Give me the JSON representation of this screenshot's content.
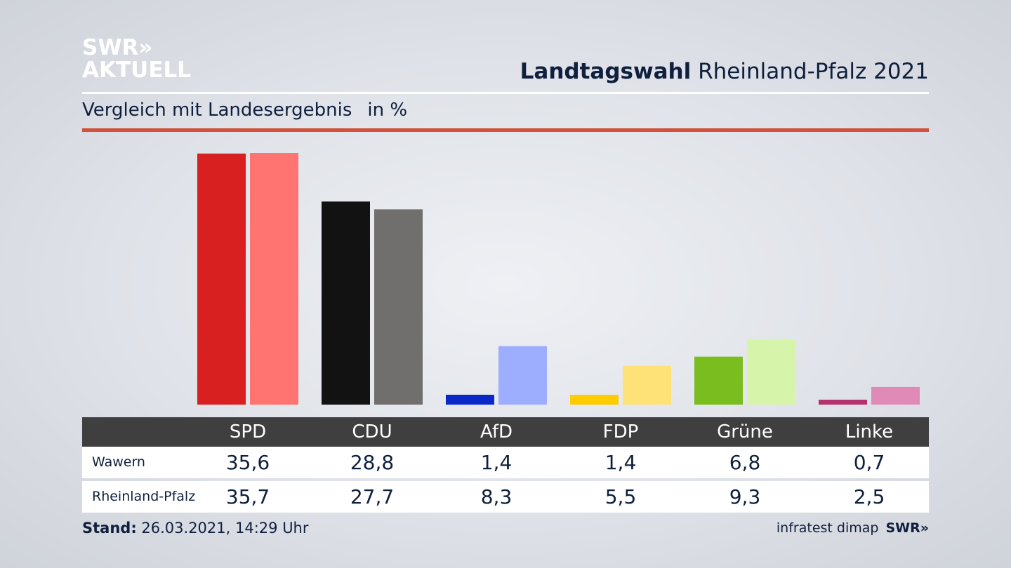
{
  "brand": {
    "line1": "SWR",
    "line2": "AKTUELL",
    "arrows": "»"
  },
  "headline": {
    "bold": "Landtagswahl",
    "rest": "Rheinland-Pfalz 2021"
  },
  "subtitle": {
    "text": "Vergleich mit Landesergebnis",
    "unit": "in %"
  },
  "colors": {
    "SPD": [
      "#d7201f",
      "#ff7470"
    ],
    "CDU": [
      "#121212",
      "#706f6d"
    ],
    "AfD": [
      "#0a28c8",
      "#9eaeff"
    ],
    "FDP": [
      "#ffcc00",
      "#ffe277"
    ],
    "Grüne": [
      "#79bd1f",
      "#d6f5ab"
    ],
    "Linke": [
      "#b5326e",
      "#e08ab8"
    ]
  },
  "chart_data": {
    "type": "bar",
    "title": "Landtagswahl Rheinland-Pfalz 2021",
    "subtitle": "Vergleich mit Landesergebnis in %",
    "categories": [
      "SPD",
      "CDU",
      "AfD",
      "FDP",
      "Grüne",
      "Linke"
    ],
    "series": [
      {
        "name": "Wawern",
        "values": [
          35.6,
          28.8,
          1.4,
          1.4,
          6.8,
          0.7
        ]
      },
      {
        "name": "Rheinland-Pfalz",
        "values": [
          35.7,
          27.7,
          8.3,
          5.5,
          9.3,
          2.5
        ]
      }
    ],
    "value_labels": [
      [
        "35,6",
        "28,8",
        "1,4",
        "1,4",
        "6,8",
        "0,7"
      ],
      [
        "35,7",
        "27,7",
        "8,3",
        "5,5",
        "9,3",
        "2,5"
      ]
    ],
    "ylim": [
      0,
      36
    ],
    "grid": false,
    "legend": "table-below"
  },
  "footer": {
    "stand_label": "Stand:",
    "stand_value": "26.03.2021, 14:29 Uhr",
    "source": "infratest dimap",
    "swr": "SWR»"
  }
}
